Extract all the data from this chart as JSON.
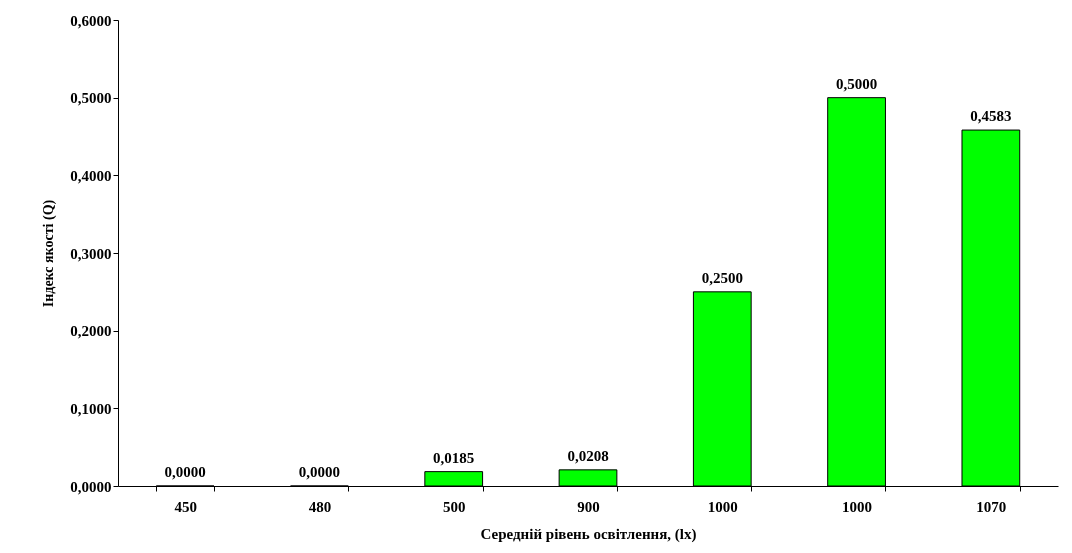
{
  "chart_data": {
    "type": "bar",
    "xlabel": "Середній рівень освітлення, (lx)",
    "ylabel": "Індекс якості (Q)",
    "categories": [
      "450",
      "480",
      "500",
      "900",
      "1000",
      "1000",
      "1070"
    ],
    "values": [
      0.0,
      0.0,
      0.0185,
      0.0208,
      0.25,
      0.5,
      0.4583
    ],
    "value_labels": [
      "0,0000",
      "0,0000",
      "0,0185",
      "0,0208",
      "0,2500",
      "0,5000",
      "0,4583"
    ],
    "color": "#00ff00",
    "ylim": [
      0,
      0.6
    ],
    "yticks": [
      {
        "value": 0,
        "label": "0,0000"
      },
      {
        "value": 0.1,
        "label": "0,1000"
      },
      {
        "value": 0.2,
        "label": "0,2000"
      },
      {
        "value": 0.3,
        "label": "0,3000"
      },
      {
        "value": 0.4,
        "label": "0,4000"
      },
      {
        "value": 0.5,
        "label": "0,5000"
      },
      {
        "value": 0.6,
        "label": "0,6000"
      }
    ],
    "grid": false
  }
}
